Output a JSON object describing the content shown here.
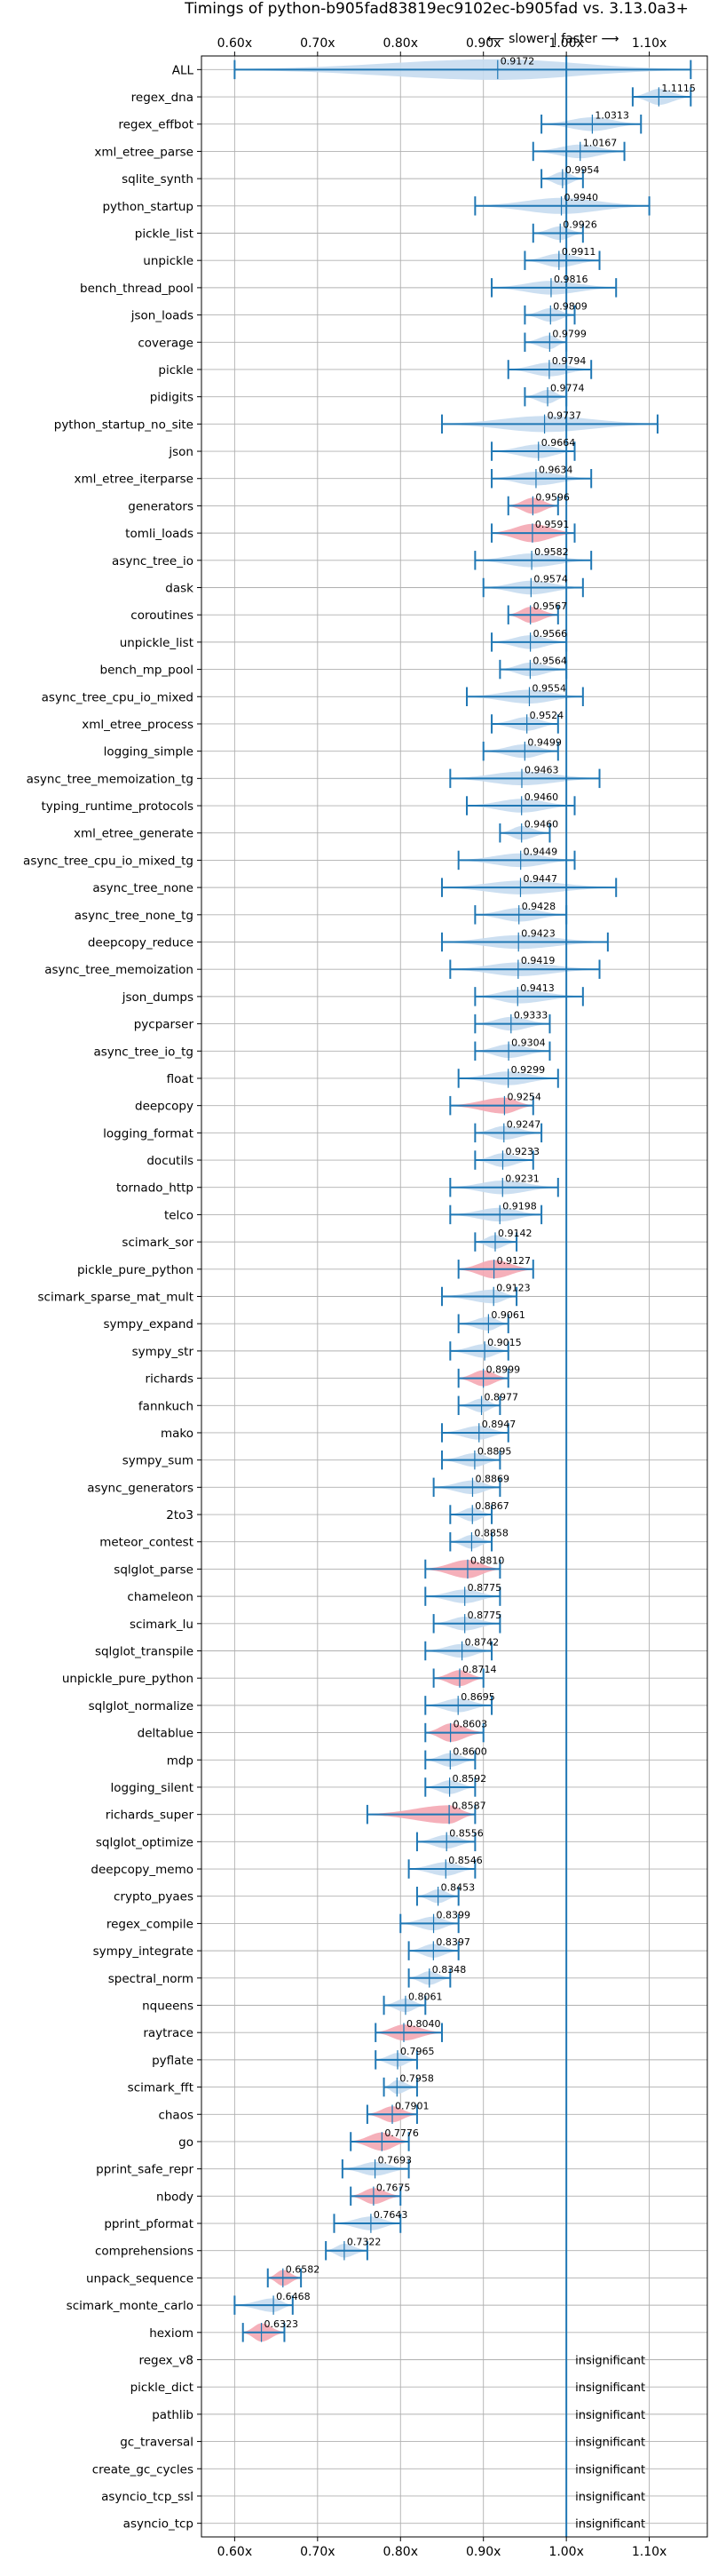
{
  "chart_data": {
    "type": "violin",
    "title": "Timings of python-b905fad83819ec9102ec-b905fad vs. 3.13.0a3+",
    "direction_label": "⟵ slower | faster ⟶",
    "x_ticks": [
      "0.60x",
      "0.70x",
      "0.80x",
      "0.90x",
      "1.00x",
      "1.10x"
    ],
    "x_tick_values": [
      0.6,
      0.7,
      0.8,
      0.9,
      1.0,
      1.1
    ],
    "xlim": [
      0.56,
      1.17
    ],
    "reference_line": 1.0,
    "grid": true,
    "colors": {
      "normal": "#1f77b4",
      "normal_fill": "#c6dbef",
      "highlight_fill": "#f4a7b3",
      "line": "#1f77b4"
    },
    "insignificant_label": "insignificant",
    "benchmarks": [
      {
        "name": "ALL",
        "mean": 0.9172,
        "label": "0.9172",
        "lo": 0.6,
        "hi": 1.15,
        "width": 0.9,
        "highlight": false
      },
      {
        "name": "regex_dna",
        "mean": 1.1115,
        "label": "1.1115",
        "lo": 1.08,
        "hi": 1.15,
        "width": 0.7,
        "highlight": false
      },
      {
        "name": "regex_effbot",
        "mean": 1.0313,
        "label": "1.0313",
        "lo": 0.97,
        "hi": 1.09,
        "width": 0.6,
        "highlight": false
      },
      {
        "name": "xml_etree_parse",
        "mean": 1.0167,
        "label": "1.0167",
        "lo": 0.96,
        "hi": 1.07,
        "width": 0.6,
        "highlight": false
      },
      {
        "name": "sqlite_synth",
        "mean": 0.9954,
        "label": "0.9954",
        "lo": 0.97,
        "hi": 1.02,
        "width": 0.6,
        "highlight": false
      },
      {
        "name": "python_startup",
        "mean": 0.994,
        "label": "0.9940",
        "lo": 0.89,
        "hi": 1.1,
        "width": 0.7,
        "highlight": false
      },
      {
        "name": "pickle_list",
        "mean": 0.9926,
        "label": "0.9926",
        "lo": 0.96,
        "hi": 1.02,
        "width": 0.6,
        "highlight": false
      },
      {
        "name": "unpickle",
        "mean": 0.9911,
        "label": "0.9911",
        "lo": 0.95,
        "hi": 1.04,
        "width": 0.6,
        "highlight": false
      },
      {
        "name": "bench_thread_pool",
        "mean": 0.9816,
        "label": "0.9816",
        "lo": 0.91,
        "hi": 1.06,
        "width": 0.6,
        "highlight": false
      },
      {
        "name": "json_loads",
        "mean": 0.9809,
        "label": "0.9809",
        "lo": 0.95,
        "hi": 1.01,
        "width": 0.6,
        "highlight": false
      },
      {
        "name": "coverage",
        "mean": 0.9799,
        "label": "0.9799",
        "lo": 0.95,
        "hi": 1.0,
        "width": 0.6,
        "highlight": false
      },
      {
        "name": "pickle",
        "mean": 0.9794,
        "label": "0.9794",
        "lo": 0.93,
        "hi": 1.03,
        "width": 0.6,
        "highlight": false
      },
      {
        "name": "pidigits",
        "mean": 0.9774,
        "label": "0.9774",
        "lo": 0.95,
        "hi": 1.0,
        "width": 0.6,
        "highlight": false
      },
      {
        "name": "python_startup_no_site",
        "mean": 0.9737,
        "label": "0.9737",
        "lo": 0.85,
        "hi": 1.11,
        "width": 0.7,
        "highlight": false
      },
      {
        "name": "json",
        "mean": 0.9664,
        "label": "0.9664",
        "lo": 0.91,
        "hi": 1.01,
        "width": 0.6,
        "highlight": false
      },
      {
        "name": "xml_etree_iterparse",
        "mean": 0.9634,
        "label": "0.9634",
        "lo": 0.91,
        "hi": 1.03,
        "width": 0.6,
        "highlight": false
      },
      {
        "name": "generators",
        "mean": 0.9596,
        "label": "0.9596",
        "lo": 0.93,
        "hi": 0.99,
        "width": 0.7,
        "highlight": true
      },
      {
        "name": "tomli_loads",
        "mean": 0.9591,
        "label": "0.9591",
        "lo": 0.91,
        "hi": 1.01,
        "width": 0.8,
        "highlight": true
      },
      {
        "name": "async_tree_io",
        "mean": 0.9582,
        "label": "0.9582",
        "lo": 0.89,
        "hi": 1.03,
        "width": 0.6,
        "highlight": false
      },
      {
        "name": "dask",
        "mean": 0.9574,
        "label": "0.9574",
        "lo": 0.9,
        "hi": 1.02,
        "width": 0.6,
        "highlight": false
      },
      {
        "name": "coroutines",
        "mean": 0.9567,
        "label": "0.9567",
        "lo": 0.93,
        "hi": 0.99,
        "width": 0.7,
        "highlight": true
      },
      {
        "name": "unpickle_list",
        "mean": 0.9566,
        "label": "0.9566",
        "lo": 0.91,
        "hi": 1.0,
        "width": 0.6,
        "highlight": false
      },
      {
        "name": "bench_mp_pool",
        "mean": 0.9564,
        "label": "0.9564",
        "lo": 0.92,
        "hi": 1.0,
        "width": 0.6,
        "highlight": false
      },
      {
        "name": "async_tree_cpu_io_mixed",
        "mean": 0.9554,
        "label": "0.9554",
        "lo": 0.88,
        "hi": 1.02,
        "width": 0.6,
        "highlight": false
      },
      {
        "name": "xml_etree_process",
        "mean": 0.9524,
        "label": "0.9524",
        "lo": 0.91,
        "hi": 0.99,
        "width": 0.6,
        "highlight": false
      },
      {
        "name": "logging_simple",
        "mean": 0.9499,
        "label": "0.9499",
        "lo": 0.9,
        "hi": 0.99,
        "width": 0.6,
        "highlight": false
      },
      {
        "name": "async_tree_memoization_tg",
        "mean": 0.9463,
        "label": "0.9463",
        "lo": 0.86,
        "hi": 1.04,
        "width": 0.6,
        "highlight": false
      },
      {
        "name": "typing_runtime_protocols",
        "mean": 0.946,
        "label": "0.9460",
        "lo": 0.88,
        "hi": 1.01,
        "width": 0.6,
        "highlight": false
      },
      {
        "name": "xml_etree_generate",
        "mean": 0.946,
        "label": "0.9460",
        "lo": 0.92,
        "hi": 0.98,
        "width": 0.6,
        "highlight": false
      },
      {
        "name": "async_tree_cpu_io_mixed_tg",
        "mean": 0.9449,
        "label": "0.9449",
        "lo": 0.87,
        "hi": 1.01,
        "width": 0.6,
        "highlight": false
      },
      {
        "name": "async_tree_none",
        "mean": 0.9447,
        "label": "0.9447",
        "lo": 0.85,
        "hi": 1.06,
        "width": 0.6,
        "highlight": false
      },
      {
        "name": "async_tree_none_tg",
        "mean": 0.9428,
        "label": "0.9428",
        "lo": 0.89,
        "hi": 1.0,
        "width": 0.6,
        "highlight": false
      },
      {
        "name": "deepcopy_reduce",
        "mean": 0.9423,
        "label": "0.9423",
        "lo": 0.85,
        "hi": 1.05,
        "width": 0.6,
        "highlight": false
      },
      {
        "name": "async_tree_memoization",
        "mean": 0.9419,
        "label": "0.9419",
        "lo": 0.86,
        "hi": 1.04,
        "width": 0.6,
        "highlight": false
      },
      {
        "name": "json_dumps",
        "mean": 0.9413,
        "label": "0.9413",
        "lo": 0.89,
        "hi": 1.02,
        "width": 0.6,
        "highlight": false
      },
      {
        "name": "pycparser",
        "mean": 0.9333,
        "label": "0.9333",
        "lo": 0.89,
        "hi": 0.98,
        "width": 0.6,
        "highlight": false
      },
      {
        "name": "async_tree_io_tg",
        "mean": 0.9304,
        "label": "0.9304",
        "lo": 0.89,
        "hi": 0.98,
        "width": 0.6,
        "highlight": false
      },
      {
        "name": "float",
        "mean": 0.9299,
        "label": "0.9299",
        "lo": 0.87,
        "hi": 0.99,
        "width": 0.6,
        "highlight": false
      },
      {
        "name": "deepcopy",
        "mean": 0.9254,
        "label": "0.9254",
        "lo": 0.86,
        "hi": 0.96,
        "width": 0.7,
        "highlight": true
      },
      {
        "name": "logging_format",
        "mean": 0.9247,
        "label": "0.9247",
        "lo": 0.89,
        "hi": 0.97,
        "width": 0.6,
        "highlight": false
      },
      {
        "name": "docutils",
        "mean": 0.9233,
        "label": "0.9233",
        "lo": 0.89,
        "hi": 0.96,
        "width": 0.6,
        "highlight": false
      },
      {
        "name": "tornado_http",
        "mean": 0.9231,
        "label": "0.9231",
        "lo": 0.86,
        "hi": 0.99,
        "width": 0.6,
        "highlight": false
      },
      {
        "name": "telco",
        "mean": 0.9198,
        "label": "0.9198",
        "lo": 0.86,
        "hi": 0.97,
        "width": 0.6,
        "highlight": false
      },
      {
        "name": "scimark_sor",
        "mean": 0.9142,
        "label": "0.9142",
        "lo": 0.89,
        "hi": 0.94,
        "width": 0.6,
        "highlight": false
      },
      {
        "name": "pickle_pure_python",
        "mean": 0.9127,
        "label": "0.9127",
        "lo": 0.87,
        "hi": 0.96,
        "width": 0.8,
        "highlight": true
      },
      {
        "name": "scimark_sparse_mat_mult",
        "mean": 0.9123,
        "label": "0.9123",
        "lo": 0.85,
        "hi": 0.94,
        "width": 0.6,
        "highlight": false
      },
      {
        "name": "sympy_expand",
        "mean": 0.9061,
        "label": "0.9061",
        "lo": 0.87,
        "hi": 0.93,
        "width": 0.6,
        "highlight": false
      },
      {
        "name": "sympy_str",
        "mean": 0.9015,
        "label": "0.9015",
        "lo": 0.86,
        "hi": 0.93,
        "width": 0.6,
        "highlight": false
      },
      {
        "name": "richards",
        "mean": 0.8999,
        "label": "0.8999",
        "lo": 0.87,
        "hi": 0.93,
        "width": 0.7,
        "highlight": true
      },
      {
        "name": "fannkuch",
        "mean": 0.8977,
        "label": "0.8977",
        "lo": 0.87,
        "hi": 0.92,
        "width": 0.6,
        "highlight": false
      },
      {
        "name": "mako",
        "mean": 0.8947,
        "label": "0.8947",
        "lo": 0.85,
        "hi": 0.93,
        "width": 0.6,
        "highlight": false
      },
      {
        "name": "sympy_sum",
        "mean": 0.8895,
        "label": "0.8895",
        "lo": 0.85,
        "hi": 0.92,
        "width": 0.6,
        "highlight": false
      },
      {
        "name": "async_generators",
        "mean": 0.8869,
        "label": "0.8869",
        "lo": 0.84,
        "hi": 0.92,
        "width": 0.6,
        "highlight": false
      },
      {
        "name": "2to3",
        "mean": 0.8867,
        "label": "0.8867",
        "lo": 0.86,
        "hi": 0.91,
        "width": 0.6,
        "highlight": false
      },
      {
        "name": "meteor_contest",
        "mean": 0.8858,
        "label": "0.8858",
        "lo": 0.86,
        "hi": 0.91,
        "width": 0.6,
        "highlight": false
      },
      {
        "name": "sqlglot_parse",
        "mean": 0.881,
        "label": "0.8810",
        "lo": 0.83,
        "hi": 0.92,
        "width": 0.8,
        "highlight": true
      },
      {
        "name": "chameleon",
        "mean": 0.8775,
        "label": "0.8775",
        "lo": 0.83,
        "hi": 0.92,
        "width": 0.6,
        "highlight": false
      },
      {
        "name": "scimark_lu",
        "mean": 0.8775,
        "label": "0.8775",
        "lo": 0.84,
        "hi": 0.92,
        "width": 0.6,
        "highlight": false
      },
      {
        "name": "sqlglot_transpile",
        "mean": 0.8742,
        "label": "0.8742",
        "lo": 0.83,
        "hi": 0.91,
        "width": 0.6,
        "highlight": false
      },
      {
        "name": "unpickle_pure_python",
        "mean": 0.8714,
        "label": "0.8714",
        "lo": 0.84,
        "hi": 0.9,
        "width": 0.7,
        "highlight": true
      },
      {
        "name": "sqlglot_normalize",
        "mean": 0.8695,
        "label": "0.8695",
        "lo": 0.83,
        "hi": 0.91,
        "width": 0.6,
        "highlight": false
      },
      {
        "name": "deltablue",
        "mean": 0.8603,
        "label": "0.8603",
        "lo": 0.83,
        "hi": 0.9,
        "width": 0.8,
        "highlight": true
      },
      {
        "name": "mdp",
        "mean": 0.86,
        "label": "0.8600",
        "lo": 0.83,
        "hi": 0.89,
        "width": 0.6,
        "highlight": false
      },
      {
        "name": "logging_silent",
        "mean": 0.8592,
        "label": "0.8592",
        "lo": 0.83,
        "hi": 0.89,
        "width": 0.6,
        "highlight": false
      },
      {
        "name": "richards_super",
        "mean": 0.8587,
        "label": "0.8587",
        "lo": 0.76,
        "hi": 0.89,
        "width": 0.8,
        "highlight": true
      },
      {
        "name": "sqlglot_optimize",
        "mean": 0.8556,
        "label": "0.8556",
        "lo": 0.82,
        "hi": 0.89,
        "width": 0.6,
        "highlight": false
      },
      {
        "name": "deepcopy_memo",
        "mean": 0.8546,
        "label": "0.8546",
        "lo": 0.81,
        "hi": 0.89,
        "width": 0.6,
        "highlight": false
      },
      {
        "name": "crypto_pyaes",
        "mean": 0.8453,
        "label": "0.8453",
        "lo": 0.82,
        "hi": 0.87,
        "width": 0.6,
        "highlight": false
      },
      {
        "name": "regex_compile",
        "mean": 0.8399,
        "label": "0.8399",
        "lo": 0.8,
        "hi": 0.87,
        "width": 0.6,
        "highlight": false
      },
      {
        "name": "sympy_integrate",
        "mean": 0.8397,
        "label": "0.8397",
        "lo": 0.81,
        "hi": 0.87,
        "width": 0.6,
        "highlight": false
      },
      {
        "name": "spectral_norm",
        "mean": 0.8348,
        "label": "0.8348",
        "lo": 0.81,
        "hi": 0.86,
        "width": 0.6,
        "highlight": false
      },
      {
        "name": "nqueens",
        "mean": 0.8061,
        "label": "0.8061",
        "lo": 0.78,
        "hi": 0.83,
        "width": 0.6,
        "highlight": false
      },
      {
        "name": "raytrace",
        "mean": 0.804,
        "label": "0.8040",
        "lo": 0.77,
        "hi": 0.85,
        "width": 0.7,
        "highlight": true
      },
      {
        "name": "pyflate",
        "mean": 0.7965,
        "label": "0.7965",
        "lo": 0.77,
        "hi": 0.82,
        "width": 0.6,
        "highlight": false
      },
      {
        "name": "scimark_fft",
        "mean": 0.7958,
        "label": "0.7958",
        "lo": 0.78,
        "hi": 0.82,
        "width": 0.6,
        "highlight": false
      },
      {
        "name": "chaos",
        "mean": 0.7901,
        "label": "0.7901",
        "lo": 0.76,
        "hi": 0.82,
        "width": 0.7,
        "highlight": true
      },
      {
        "name": "go",
        "mean": 0.7776,
        "label": "0.7776",
        "lo": 0.74,
        "hi": 0.81,
        "width": 0.8,
        "highlight": true
      },
      {
        "name": "pprint_safe_repr",
        "mean": 0.7693,
        "label": "0.7693",
        "lo": 0.73,
        "hi": 0.81,
        "width": 0.6,
        "highlight": false
      },
      {
        "name": "nbody",
        "mean": 0.7675,
        "label": "0.7675",
        "lo": 0.74,
        "hi": 0.8,
        "width": 0.7,
        "highlight": true
      },
      {
        "name": "pprint_pformat",
        "mean": 0.7643,
        "label": "0.7643",
        "lo": 0.72,
        "hi": 0.8,
        "width": 0.6,
        "highlight": false
      },
      {
        "name": "comprehensions",
        "mean": 0.7322,
        "label": "0.7322",
        "lo": 0.71,
        "hi": 0.76,
        "width": 0.6,
        "highlight": false
      },
      {
        "name": "unpack_sequence",
        "mean": 0.6582,
        "label": "0.6582",
        "lo": 0.64,
        "hi": 0.68,
        "width": 0.7,
        "highlight": true
      },
      {
        "name": "scimark_monte_carlo",
        "mean": 0.6468,
        "label": "0.6468",
        "lo": 0.6,
        "hi": 0.67,
        "width": 0.6,
        "highlight": false
      },
      {
        "name": "hexiom",
        "mean": 0.6323,
        "label": "0.6323",
        "lo": 0.61,
        "hi": 0.66,
        "width": 0.8,
        "highlight": true
      },
      {
        "name": "regex_v8",
        "insignificant": true
      },
      {
        "name": "pickle_dict",
        "insignificant": true
      },
      {
        "name": "pathlib",
        "insignificant": true
      },
      {
        "name": "gc_traversal",
        "insignificant": true
      },
      {
        "name": "create_gc_cycles",
        "insignificant": true
      },
      {
        "name": "asyncio_tcp_ssl",
        "insignificant": true
      },
      {
        "name": "asyncio_tcp",
        "insignificant": true
      }
    ]
  }
}
